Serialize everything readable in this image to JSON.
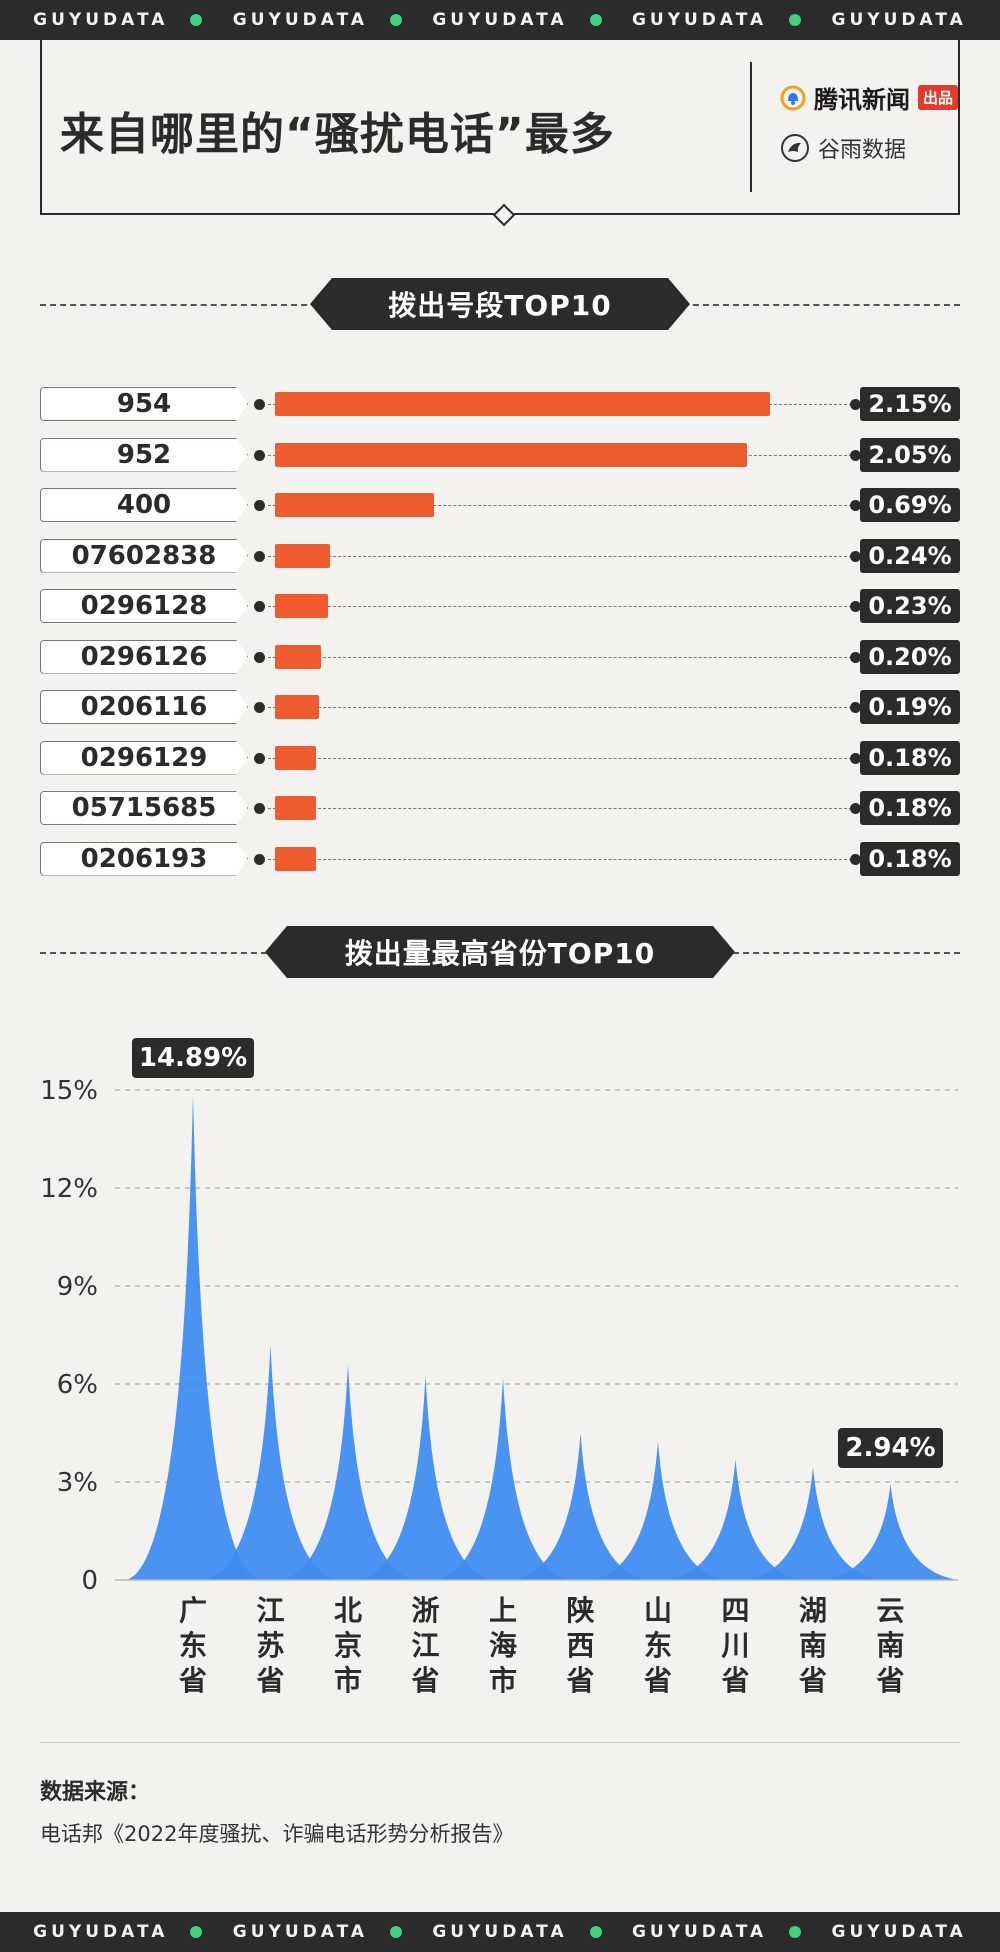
{
  "strip": {
    "items": [
      "GUYUDATA",
      "GUYUDATA",
      "GUYUDATA",
      "GUYUDATA",
      "GUYUDATA"
    ]
  },
  "header": {
    "title": "来自哪里的“骚扰电话”最多",
    "logo1_text": "腾讯新闻",
    "logo1_badge": "出品",
    "logo2_text": "谷雨数据"
  },
  "section1": {
    "label": "拨出号段TOP10"
  },
  "section2": {
    "label": "拨出量最高省份TOP10"
  },
  "chart_data": [
    {
      "type": "bar",
      "orientation": "horizontal",
      "categories": [
        "954",
        "952",
        "400",
        "07602838",
        "0296128",
        "0296126",
        "0206116",
        "0296129",
        "05715685",
        "0206193"
      ],
      "values": [
        2.15,
        2.05,
        0.69,
        0.24,
        0.23,
        0.2,
        0.19,
        0.18,
        0.18,
        0.18
      ],
      "value_labels": [
        "2.15%",
        "2.05%",
        "0.69%",
        "0.24%",
        "0.23%",
        "0.20%",
        "0.19%",
        "0.18%",
        "0.18%",
        "0.18%"
      ],
      "bar_color": "#ee5b2e",
      "title": "拨出号段TOP10"
    },
    {
      "type": "area",
      "categories": [
        "广东省",
        "江苏省",
        "北京市",
        "浙江省",
        "上海市",
        "陕西省",
        "山东省",
        "四川省",
        "湖南省",
        "云南省"
      ],
      "values": [
        14.89,
        7.2,
        6.6,
        6.25,
        6.2,
        4.5,
        4.25,
        3.7,
        3.45,
        2.94
      ],
      "yticks": [
        "0",
        "3%",
        "6%",
        "9%",
        "12%",
        "15%"
      ],
      "ytick_values": [
        0,
        3,
        6,
        9,
        12,
        15
      ],
      "ylim": [
        0,
        15
      ],
      "grid": true,
      "callouts": [
        {
          "index": 0,
          "label": "14.89%"
        },
        {
          "index": 9,
          "label": "2.94%"
        }
      ],
      "color": "#3d8bf0",
      "title": "拨出量最高省份TOP10"
    }
  ],
  "source": {
    "title": "数据来源：",
    "text": "电话邦《2022年度骚扰、诈骗电话形势分析报告》"
  }
}
